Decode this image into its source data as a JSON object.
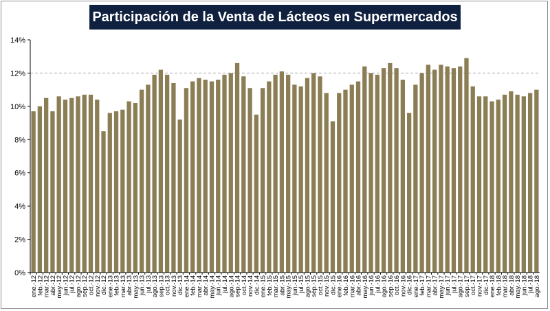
{
  "chart_data": {
    "type": "bar",
    "title": "Participación de la Venta de Lácteos en Supermercados",
    "xlabel": "",
    "ylabel": "",
    "ylim": [
      0,
      14
    ],
    "yticks": [
      "0%",
      "2%",
      "4%",
      "6%",
      "8%",
      "10%",
      "12%",
      "14%"
    ],
    "ytick_values": [
      0,
      2,
      4,
      6,
      8,
      10,
      12,
      14
    ],
    "dashed_gridlines": [
      12
    ],
    "bar_color": "#8b7e55",
    "categories": [
      "ene.-12",
      "feb.-12",
      "mar.-12",
      "abr.-12",
      "may.-12",
      "jun.-12",
      "jul.-12",
      "ago.-12",
      "sep.-12",
      "oct.-12",
      "nov.-12",
      "dic.-12",
      "ene.-13",
      "feb.-13",
      "mar.-13",
      "abr.-13",
      "may.-13",
      "jun.-13",
      "jul.-13",
      "ago.-13",
      "sep.-13",
      "oct.-13",
      "nov.-13",
      "dic.-13",
      "ene.-14",
      "feb.-14",
      "mar.-14",
      "abr.-14",
      "may.-14",
      "jun.-14",
      "jul.-14",
      "ago.-14",
      "sep.-14",
      "oct.-14",
      "nov.-14",
      "dic.-14",
      "ene.-15",
      "feb.-15",
      "mar.-15",
      "abr.-15",
      "may.-15",
      "jun.-15",
      "jul.-15",
      "ago.-15",
      "sep.-15",
      "oct.-15",
      "nov.-15",
      "dic.-15",
      "ene.-16",
      "feb.-16",
      "mar.-16",
      "abr.-16",
      "may.-16",
      "jun.-16",
      "jul.-16",
      "ago.-16",
      "sep.-16",
      "oct.-16",
      "nov.-16",
      "dic.-16",
      "ene.-17",
      "feb.-17",
      "mar.-17",
      "abr.-17",
      "may.-17",
      "jun.-17",
      "jul.-17",
      "ago.-17",
      "sep.-17",
      "oct.-17",
      "nov.-17",
      "dic.-17",
      "ene.-18",
      "feb.-18",
      "mar.-18",
      "abr.-18",
      "may.-18",
      "jun.-18",
      "jul.-18",
      "ago.-18"
    ],
    "values": [
      9.7,
      10.0,
      10.5,
      9.7,
      10.6,
      10.4,
      10.5,
      10.6,
      10.7,
      10.7,
      10.4,
      8.5,
      9.6,
      9.7,
      9.8,
      10.3,
      10.2,
      11.0,
      11.3,
      11.9,
      12.2,
      11.9,
      11.4,
      9.2,
      11.1,
      11.5,
      11.7,
      11.6,
      11.5,
      11.6,
      11.9,
      12.0,
      12.6,
      11.8,
      11.1,
      9.5,
      11.1,
      11.5,
      11.9,
      12.1,
      11.9,
      11.3,
      11.2,
      11.7,
      12.0,
      11.8,
      10.8,
      9.1,
      10.8,
      11.0,
      11.3,
      11.5,
      12.4,
      12.0,
      11.9,
      12.3,
      12.6,
      12.3,
      11.6,
      9.6,
      11.3,
      12.0,
      12.5,
      12.2,
      12.5,
      12.4,
      12.3,
      12.4,
      12.9,
      11.2,
      10.6,
      10.6,
      10.3,
      10.4,
      10.7,
      10.9,
      10.7,
      10.6,
      10.8,
      11.0
    ],
    "visible_x_labels": [
      "ene.-12",
      "feb.-12",
      "mar.-12",
      "abr.-12",
      "may.-12",
      "jun.-12",
      "jul.-12",
      "ago.-12",
      "sep.-12",
      "oct.-12",
      "nov.-12",
      "dic.-12",
      "ene.-13",
      "feb.-13",
      "mar.-13",
      "abr.-13",
      "may.-13",
      "jun.-13",
      "jul.-13",
      "ago.-13",
      "sep.-13",
      "oct.-13",
      "nov.-13",
      "dic.-13",
      "ene.-14",
      "feb.-14",
      "mar.-14",
      "abr.-14",
      "may.-14",
      "jun.-14",
      "jul.-14",
      "ago.-14",
      "sep.-14",
      "oct.-14",
      "nov.-14",
      "dic.-14",
      "ene.-15",
      "feb.-15",
      "mar.-15",
      "abr.-15",
      "may.-15",
      "jun.-15",
      "jul.-15",
      "ago.-15",
      "sep.-15",
      "oct.-15",
      "nov.-15",
      "dic.-15",
      "ene.-16",
      "feb.-16",
      "mar.-16",
      "abr.-16",
      "may.-16",
      "jun.-16",
      "jul.-16",
      "ago.-16",
      "sep.-16",
      "oct.-16",
      "nov.-16",
      "dic.-16",
      "ene.-17",
      "feb.-17",
      "mar.-17",
      "abr.-17",
      "may.-17",
      "jun.-17",
      "jul.-17",
      "ago.-17",
      "sep.-17",
      "oct.-17",
      "nov.-17",
      "dic.-17",
      "ene.-18",
      "feb.-18",
      "mar.-18",
      "abr.-18",
      "may.-18",
      "jun.-18",
      "jul.-18",
      "ago.-18"
    ],
    "legend": "none"
  },
  "colors": {
    "title_bg": "#10213f",
    "title_text": "#ffffff",
    "bar": "#8b7e55",
    "dashed_grid": "#a6a6a6",
    "axis": "#000000"
  }
}
